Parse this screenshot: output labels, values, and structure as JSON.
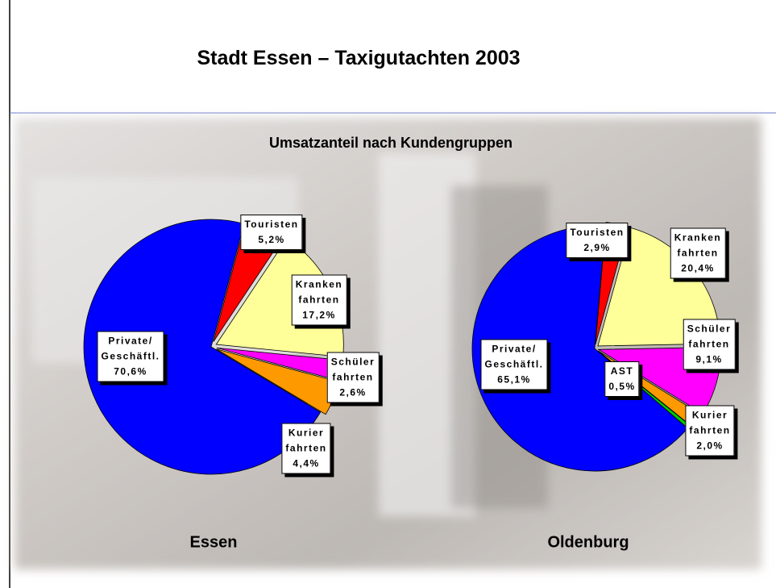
{
  "slide": {
    "title": "Stadt Essen – Taxigutachten 2003",
    "subtitle": "Umsatzanteil nach Kundengruppen"
  },
  "chart_data": [
    {
      "type": "pie",
      "title": "Essen",
      "categories": [
        "Touristen",
        "Kranken\nfahrten",
        "Schüler\nfahrten",
        "Kurier\nfahrten",
        "Private/\nGeschäftl."
      ],
      "values": [
        5.2,
        17.2,
        2.6,
        4.4,
        70.6
      ],
      "value_labels": [
        "5,2%",
        "17,2%",
        "2,6%",
        "4,4%",
        "70,6%"
      ],
      "colors": [
        "#ff0000",
        "#ffff99",
        "#ff00ff",
        "#ff9900",
        "#0000ff"
      ]
    },
    {
      "type": "pie",
      "title": "Oldenburg",
      "categories": [
        "Touristen",
        "Kranken\nfahrten",
        "Schüler\nfahrten",
        "Kurier\nfahrten",
        "AST",
        "Private/\nGeschäftl."
      ],
      "values": [
        2.9,
        20.4,
        9.1,
        2.0,
        0.5,
        65.1
      ],
      "value_labels": [
        "2,9%",
        "20,4%",
        "9,1%",
        "2,0%",
        "0,5%",
        "65,1%"
      ],
      "colors": [
        "#ff0000",
        "#ffff99",
        "#ff00ff",
        "#ff9900",
        "#00cc00",
        "#0000ff"
      ]
    }
  ]
}
